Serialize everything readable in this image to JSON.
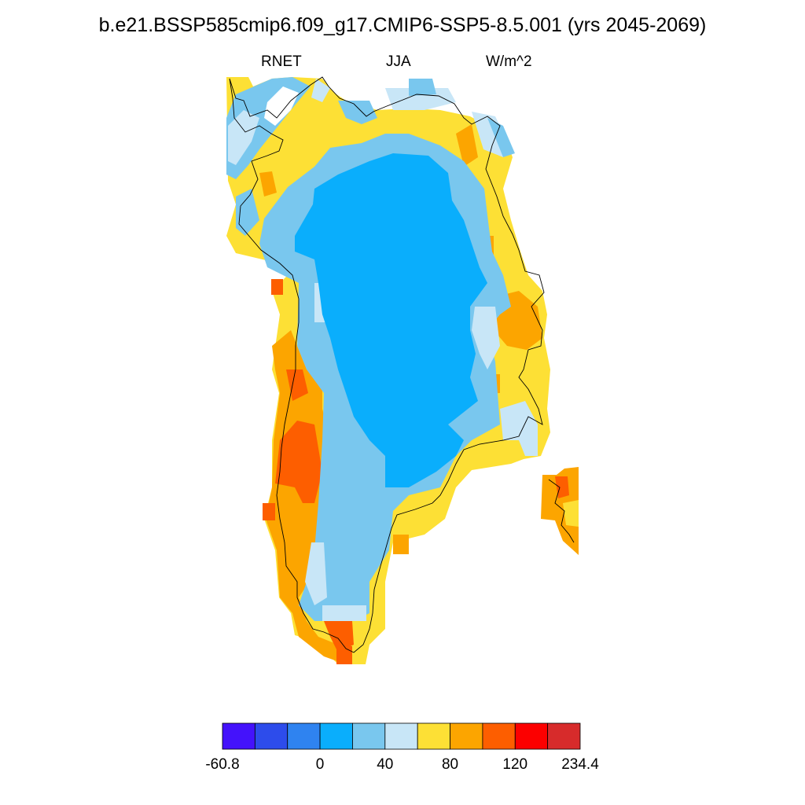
{
  "title": "b.e21.BSSP585cmip6.f09_g17.CMIP6-SSP5-8.5.001 (yrs 2045-2069)",
  "variable": "RNET",
  "season": "JJA",
  "units": "W/m^2",
  "colorbar": {
    "colors": [
      "#4412fb",
      "#2d4ceb",
      "#2f83f0",
      "#0aaefc",
      "#79c7ee",
      "#c8e6f7",
      "#fde035",
      "#fca500",
      "#fd5e00",
      "#fc0000",
      "#d72b2b"
    ],
    "tick_labels": [
      "-60.8",
      "0",
      "40",
      "80",
      "120",
      "234.4"
    ],
    "tick_values": [
      -60.8,
      0,
      40,
      80,
      120,
      234.4
    ],
    "bounds": [
      -60.8,
      -40,
      -20,
      0,
      20,
      40,
      60,
      80,
      100,
      120,
      160,
      234.4
    ]
  }
}
